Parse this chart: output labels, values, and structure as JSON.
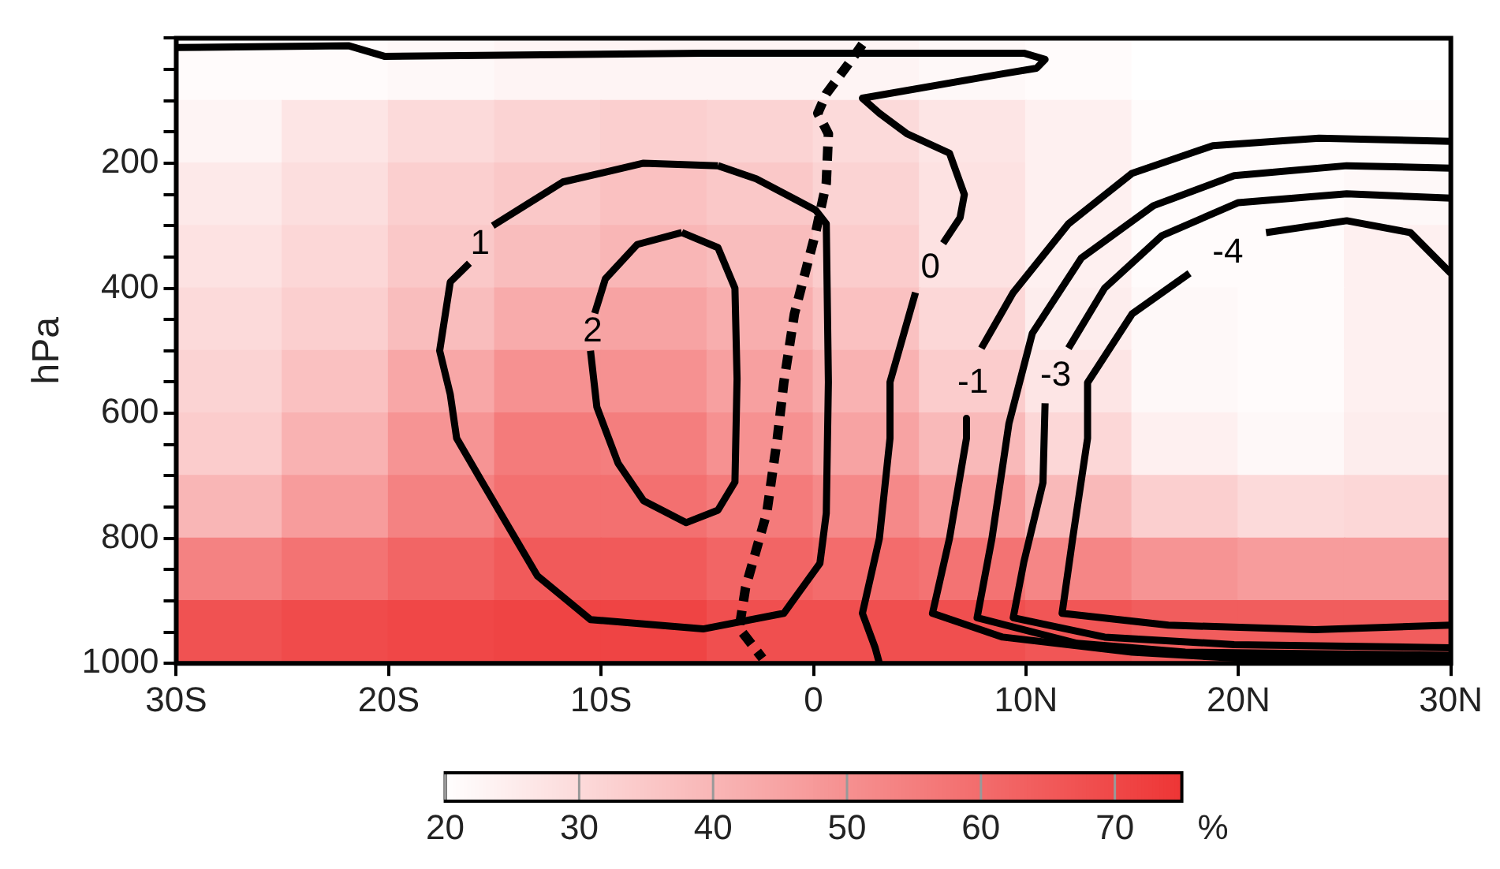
{
  "chart_data": [
    {
      "type": "heatmap",
      "clabel": "%",
      "clim": [
        20,
        75
      ],
      "cticks": [
        20,
        30,
        40,
        50,
        60,
        70
      ],
      "categories": [
        null,
        null,
        null,
        null,
        null,
        null,
        null,
        null,
        null,
        null,
        null,
        null
      ],
      "y_categories": [
        null,
        null,
        null,
        null,
        null,
        null,
        null,
        null,
        null,
        null
      ],
      "cells": [
        [
          21,
          21,
          22,
          23,
          23,
          23,
          23,
          22,
          21,
          20,
          20,
          20
        ],
        [
          23,
          27,
          30,
          32,
          33,
          32,
          30,
          27,
          24,
          21,
          21,
          21
        ],
        [
          26,
          29,
          33,
          35,
          37,
          35,
          32,
          28,
          24,
          21,
          21,
          22
        ],
        [
          28,
          31,
          35,
          38,
          40,
          38,
          34,
          28,
          24,
          21,
          21,
          24
        ],
        [
          30,
          33,
          38,
          43,
          45,
          42,
          37,
          31,
          25,
          22,
          21,
          24
        ],
        [
          32,
          37,
          44,
          50,
          50,
          46,
          41,
          34,
          27,
          22,
          21,
          24
        ],
        [
          34,
          41,
          49,
          56,
          55,
          50,
          45,
          39,
          31,
          24,
          22,
          25
        ],
        [
          40,
          47,
          54,
          59,
          59,
          56,
          52,
          47,
          39,
          33,
          30,
          31
        ],
        [
          54,
          58,
          62,
          65,
          65,
          62,
          60,
          58,
          53,
          49,
          47,
          47
        ],
        [
          67,
          69,
          70,
          71,
          71,
          68,
          68,
          68,
          66,
          64,
          64,
          64
        ]
      ]
    },
    {
      "type": "line",
      "ylabel": "hPa",
      "xlim": [
        -30,
        30
      ],
      "ylim": [
        1000,
        0
      ],
      "xticks": [
        {
          "value": -30,
          "label": "30S"
        },
        {
          "value": -20,
          "label": "20S"
        },
        {
          "value": -10,
          "label": "10S"
        },
        0,
        {
          "value": 10,
          "label": "10N"
        },
        {
          "value": 20,
          "label": "20N"
        },
        {
          "value": 30,
          "label": "30N"
        }
      ],
      "yticks": [
        {
          "value": 0,
          "label": null
        },
        {
          "value": 50,
          "label": null
        },
        {
          "value": 100,
          "label": null
        },
        {
          "value": 150,
          "label": null
        },
        200,
        {
          "value": 250,
          "label": null
        },
        {
          "value": 300,
          "label": null
        },
        {
          "value": 350,
          "label": null
        },
        400,
        {
          "value": 450,
          "label": null
        },
        {
          "value": 500,
          "label": null
        },
        {
          "value": 550,
          "label": null
        },
        600,
        {
          "value": 650,
          "label": null
        },
        {
          "value": 700,
          "label": null
        },
        {
          "value": 750,
          "label": null
        },
        800,
        {
          "value": 850,
          "label": null
        },
        {
          "value": 900,
          "label": null
        },
        {
          "value": 950,
          "label": null
        },
        1000
      ],
      "series": [
        {
          "name": "1",
          "color": "#000000",
          "x": [
            -4.5,
            -2.7,
            0.1,
            0.6,
            0.7,
            0.6,
            0.3,
            -1.4,
            -5.2,
            -10.5,
            -13,
            -15.6,
            -16.8,
            -17.1,
            -17.6,
            -17.1,
            -16.2,
            -15.7,
            -15.1,
            -11.8,
            -8,
            -4.5
          ],
          "values": [
            204,
            225,
            275,
            297,
            550,
            760,
            840,
            920,
            945,
            930,
            860,
            710,
            640,
            570,
            500,
            390,
            360,
            null,
            300,
            230,
            200,
            204
          ]
        },
        {
          "name": "2",
          "color": "#000000",
          "x": [
            -6.2,
            -4.5,
            -3.7,
            -3.6,
            -3.7,
            -4.5,
            -6,
            -8,
            -9.2,
            -10.2,
            -10.5,
            -10.4,
            -10.3,
            -9.8,
            -8.3,
            -6.2
          ],
          "values": [
            311,
            335,
            400,
            545,
            710,
            755,
            775,
            740,
            680,
            590,
            500,
            null,
            440,
            385,
            330,
            311
          ]
        },
        {
          "name": "0",
          "color": "#000000",
          "x": [
            -30,
            -21.9,
            -20.2,
            -5.2,
            9.9,
            10.9,
            10.5,
            8.9,
            2.3,
            3.1,
            4.4,
            6.4,
            7.1,
            6.9,
            6.1,
            5.5,
            4.8,
            3.6,
            3.6,
            3.1,
            2.3,
            2.9,
            3.1
          ],
          "values": [
            15,
            12,
            29,
            24,
            24,
            34,
            48,
            57,
            96,
            120,
            153,
            184,
            250,
            287,
            328,
            null,
            407,
            550,
            640,
            800,
            920,
            975,
            1000
          ]
        },
        {
          "name": "-1",
          "color": "#000000",
          "x": [
            30,
            23.8,
            18.8,
            15,
            12,
            9.4,
            7.9,
            7.5,
            7.2,
            7.2,
            6.4,
            5.6,
            8.9,
            15,
            20,
            30
          ],
          "values": [
            165,
            160,
            172,
            216,
            297,
            407,
            496,
            null,
            608,
            640,
            800,
            920,
            958,
            982,
            992,
            994
          ]
        },
        {
          "color": "#000000",
          "x": [
            30,
            25.1,
            19.8,
            16,
            12.6,
            10.3,
            9.2,
            8.4,
            7.7,
            12.4,
            17.5,
            30
          ],
          "values": [
            208,
            204,
            220,
            268,
            352,
            472,
            616,
            800,
            927,
            968,
            982,
            987
          ]
        },
        {
          "name": "-3",
          "color": "#000000",
          "x": [
            30,
            25.1,
            20,
            16.4,
            13.7,
            12,
            11.4,
            10.9,
            10.8,
            9.9,
            9.4,
            13.7,
            19.8,
            30
          ],
          "values": [
            256,
            249,
            263,
            316,
            400,
            496,
            null,
            584,
            711,
            838,
            927,
            958,
            970,
            975
          ]
        },
        {
          "name": "-4",
          "color": "#000000",
          "x": [
            30,
            28.1,
            25.1,
            21.3,
            19.5,
            17.7,
            15,
            12.9,
            12.9,
            12.2,
            11.7,
            16.7,
            23.6,
            30
          ],
          "values": [
            376,
            311,
            292,
            311,
            null,
            376,
            441,
            551,
            640,
            800,
            920,
            939,
            946,
            939
          ]
        },
        {
          "color": "#000000",
          "line_style": "dashed",
          "x": [
            2.3,
            1.8,
            0.6,
            0.2,
            0.7,
            0.6,
            0.1,
            -0.9,
            -1.4,
            -1.7,
            -2.2,
            -3.2,
            -3.5,
            -2.4
          ],
          "values": [
            10,
            34,
            89,
            120,
            153,
            232,
            311,
            441,
            551,
            639,
            759,
            879,
            944,
            992
          ]
        }
      ]
    }
  ]
}
